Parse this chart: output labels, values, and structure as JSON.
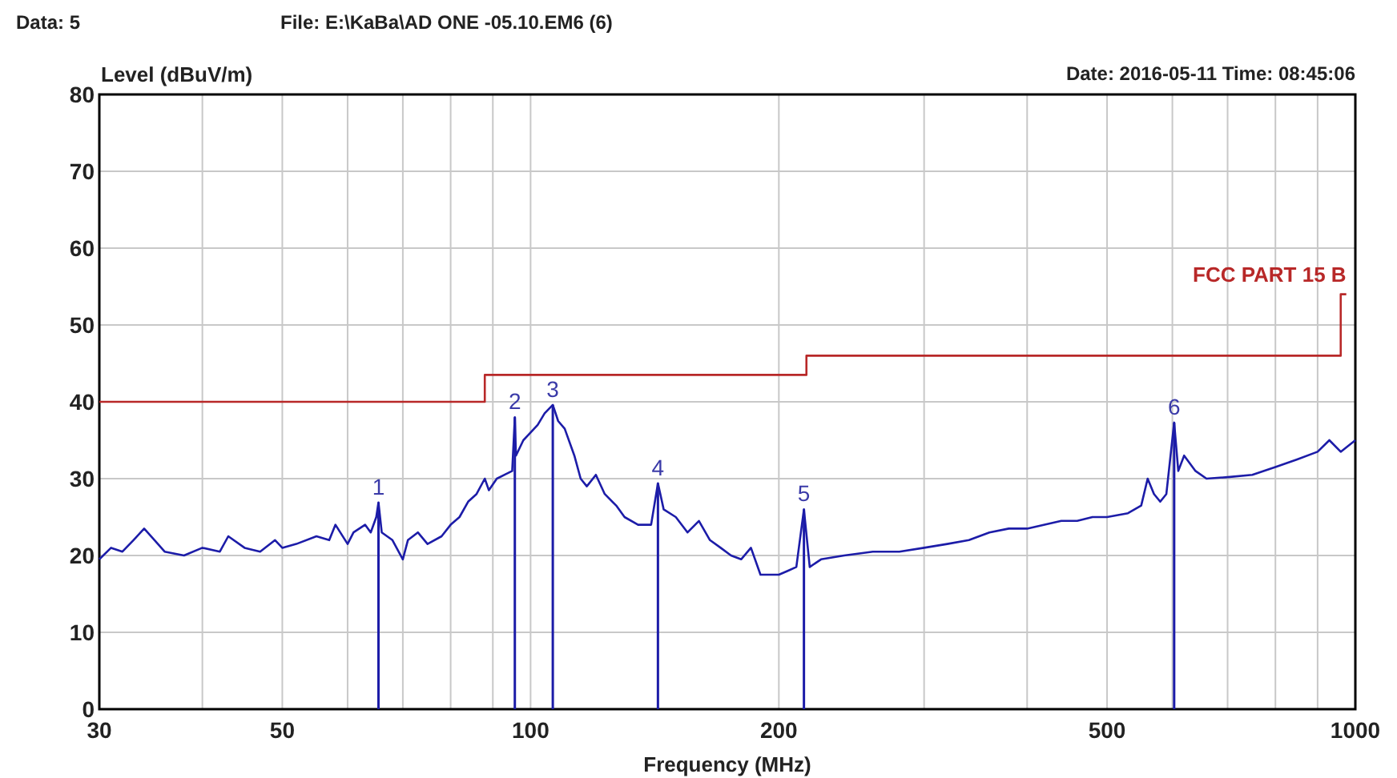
{
  "chart_data": {
    "type": "line",
    "xlabel": "Frequency (MHz)",
    "ylabel": "Level (dBuV/m)",
    "log": "x",
    "xlim": [
      30,
      1000
    ],
    "ylim": [
      0,
      80
    ],
    "xticks": [
      30,
      {
        "value": 40,
        "label": null
      },
      50,
      {
        "value": 60,
        "label": null
      },
      {
        "value": 70,
        "label": null
      },
      {
        "value": 80,
        "label": null
      },
      {
        "value": 90,
        "label": null
      },
      100,
      200,
      {
        "value": 300,
        "label": null
      },
      {
        "value": 400,
        "label": null
      },
      500,
      {
        "value": 600,
        "label": null
      },
      {
        "value": 700,
        "label": null
      },
      {
        "value": 800,
        "label": null
      },
      {
        "value": 900,
        "label": null
      },
      1000
    ],
    "yticks": [
      0,
      10,
      20,
      30,
      40,
      50,
      60,
      70,
      80
    ],
    "grid": true,
    "line_style": "solid",
    "marker": "none",
    "series": [
      {
        "color": "#1c1ca8",
        "x": [
          30,
          31,
          32,
          33,
          34,
          35,
          36,
          38,
          40,
          42,
          43,
          45,
          47,
          49,
          50,
          52,
          55,
          57,
          58,
          60,
          61,
          63,
          64,
          65,
          65.4,
          66,
          68,
          70,
          71,
          73,
          75,
          78,
          80,
          82,
          84,
          86,
          88,
          89,
          91,
          93,
          95,
          95.7,
          96,
          98,
          100,
          102,
          104,
          106.4,
          108,
          110,
          113,
          115,
          117,
          120,
          123,
          127,
          130,
          135,
          140,
          142.7,
          145,
          150,
          155,
          160,
          165,
          170,
          175,
          180,
          185,
          190,
          195,
          200,
          205,
          210,
          214.5,
          218,
          225,
          240,
          260,
          280,
          300,
          320,
          340,
          360,
          380,
          400,
          420,
          440,
          460,
          480,
          500,
          530,
          550,
          560,
          570,
          580,
          590,
          603,
          610,
          620,
          640,
          660,
          700,
          750,
          800,
          850,
          900,
          930,
          960,
          1000
        ],
        "values": [
          19.5,
          21,
          20.5,
          22,
          23.5,
          22,
          20.5,
          20,
          21,
          20.5,
          22.5,
          21,
          20.5,
          22,
          21,
          21.5,
          22.5,
          22,
          24,
          21.5,
          23,
          24,
          23,
          25,
          26.9,
          23,
          22,
          19.5,
          22,
          23,
          21.5,
          22.5,
          24,
          25,
          27,
          28,
          30,
          28.5,
          30,
          30.5,
          31,
          38,
          33,
          35,
          36,
          37,
          38.5,
          39.6,
          37.5,
          36.5,
          33,
          30,
          29,
          30.5,
          28,
          26.5,
          25,
          24,
          24,
          29.4,
          26,
          25,
          23,
          24.5,
          22,
          21,
          20,
          19.5,
          21,
          17.5,
          17.5,
          17.5,
          18,
          18.5,
          26,
          18.5,
          19.5,
          20,
          20.5,
          20.5,
          21,
          21.5,
          22,
          23,
          23.5,
          23.5,
          24,
          24.5,
          24.5,
          25,
          25,
          25.5,
          26.5,
          30,
          28,
          27,
          28,
          37.3,
          31,
          33,
          31,
          30,
          30.2,
          30.5,
          31.5,
          32.5,
          33.5,
          35,
          33.5,
          35
        ]
      },
      {
        "type": "step",
        "name": "FCC PART 15 B",
        "color": "#b82828",
        "x": [
          30,
          88,
          216,
          960,
          975
        ],
        "values": [
          40,
          43.5,
          46,
          54,
          54
        ]
      }
    ],
    "annotations": [
      "Data: 5",
      "File: E:\\KaBa\\AD ONE -05.10.EM6  (6)",
      "Date: 2016-05-11  Time: 08:45:06",
      {
        "text": "1",
        "x": 65.4,
        "y": 26.9
      },
      {
        "text": "2",
        "x": 95.7,
        "y": 38
      },
      {
        "text": "3",
        "x": 106.4,
        "y": 39.6
      },
      {
        "text": "4",
        "x": 142.7,
        "y": 29.4
      },
      {
        "text": "5",
        "x": 214.5,
        "y": 26
      },
      {
        "text": "6",
        "x": 603,
        "y": 37.3
      }
    ]
  }
}
